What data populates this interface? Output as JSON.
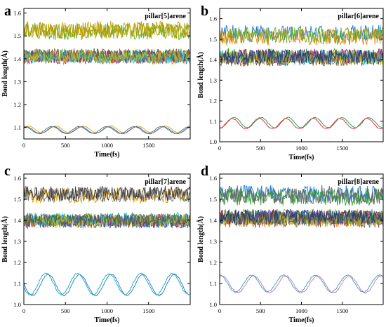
{
  "chart_data": [
    {
      "type": "line",
      "panel_letter": "a",
      "annotation": "pillar[5]arene",
      "xlabel": "Time(fs)",
      "ylabel": "Bond length(Å)",
      "xlim": [
        0,
        2000
      ],
      "ylim": [
        1.05,
        1.62
      ],
      "xticks": [
        0,
        500,
        1000,
        1500
      ],
      "yticks": [
        1.1,
        1.2,
        1.3,
        1.4,
        1.5,
        1.6
      ],
      "grid": false,
      "series_groups": [
        {
          "level": 1.52,
          "amplitude": 0.035,
          "osc_period": 0,
          "colors": [
            "#6ab023",
            "#9b9b00",
            "#c8a000"
          ]
        },
        {
          "level": 1.41,
          "amplitude": 0.028,
          "osc_period": 0,
          "colors": [
            "#e2262c",
            "#1f77d0",
            "#2aa02a",
            "#ff7f0e",
            "#7b3294",
            "#555555",
            "#8c564b",
            "#17becf",
            "#bcbd22"
          ]
        },
        {
          "level": 1.09,
          "amplitude": 0.015,
          "osc_period": 330,
          "colors": [
            "#e6a000",
            "#1f77d0",
            "#6b6b6b"
          ]
        }
      ]
    },
    {
      "type": "line",
      "panel_letter": "b",
      "annotation": "pillar[6]arene",
      "xlabel": "Time(fs)",
      "ylabel": "Bond length(Å)",
      "xlim": [
        0,
        2000
      ],
      "ylim": [
        1.0,
        1.65
      ],
      "xticks": [
        0,
        500,
        1000,
        1500
      ],
      "yticks": [
        1.0,
        1.1,
        1.2,
        1.3,
        1.4,
        1.5,
        1.6
      ],
      "grid": false,
      "series_groups": [
        {
          "level": 1.52,
          "amplitude": 0.04,
          "osc_period": 0,
          "colors": [
            "#1f77d0",
            "#ff7f0e",
            "#6ab023"
          ]
        },
        {
          "level": 1.41,
          "amplitude": 0.035,
          "osc_period": 0,
          "colors": [
            "#e2262c",
            "#2aa02a",
            "#555555",
            "#17becf",
            "#7b3294",
            "#8c564b",
            "#bcbd22",
            "#1f3f7a"
          ]
        },
        {
          "level": 1.09,
          "amplitude": 0.025,
          "osc_period": 330,
          "colors": [
            "#1a9a50",
            "#e2262c"
          ]
        }
      ]
    },
    {
      "type": "line",
      "panel_letter": "c",
      "annotation": "pillar[7]arene",
      "xlabel": "Time(fs)",
      "ylabel": "Bond length(Å)",
      "xlim": [
        0,
        2000
      ],
      "ylim": [
        1.0,
        1.62
      ],
      "xticks": [
        0,
        500,
        1000,
        1500
      ],
      "yticks": [
        1.0,
        1.1,
        1.2,
        1.3,
        1.4,
        1.5,
        1.6
      ],
      "grid": false,
      "series_groups": [
        {
          "level": 1.52,
          "amplitude": 0.035,
          "osc_period": 0,
          "colors": [
            "#e6a000",
            "#6b6b6b",
            "#3a3a3a"
          ]
        },
        {
          "level": 1.4,
          "amplitude": 0.03,
          "osc_period": 0,
          "colors": [
            "#e2262c",
            "#ff7f0e",
            "#2aa02a",
            "#1f77d0",
            "#7b3294",
            "#8c564b",
            "#17becf",
            "#bcbd22",
            "#555555"
          ]
        },
        {
          "level": 1.09,
          "amplitude": 0.05,
          "osc_period": 380,
          "colors": [
            "#1f77d0",
            "#17a2b8"
          ]
        }
      ]
    },
    {
      "type": "line",
      "panel_letter": "d",
      "annotation": "pillar[8]arene",
      "xlabel": "Time(fs)",
      "ylabel": "Bond length(Å)",
      "xlim": [
        0,
        2000
      ],
      "ylim": [
        1.0,
        1.62
      ],
      "xticks": [
        0,
        500,
        1000,
        1500
      ],
      "yticks": [
        1.0,
        1.1,
        1.2,
        1.3,
        1.4,
        1.5,
        1.6
      ],
      "grid": false,
      "series_groups": [
        {
          "level": 1.52,
          "amplitude": 0.04,
          "osc_period": 0,
          "colors": [
            "#1f77d0",
            "#2aa02a",
            "#6b6b6b"
          ]
        },
        {
          "level": 1.41,
          "amplitude": 0.035,
          "osc_period": 0,
          "colors": [
            "#e2262c",
            "#6ab023",
            "#ff7f0e",
            "#17becf",
            "#7b3294",
            "#8c564b",
            "#bcbd22",
            "#555555",
            "#1f3f7a"
          ]
        },
        {
          "level": 1.1,
          "amplitude": 0.04,
          "osc_period": 390,
          "colors": [
            "#c070e0",
            "#3aa0a0"
          ]
        }
      ]
    }
  ]
}
